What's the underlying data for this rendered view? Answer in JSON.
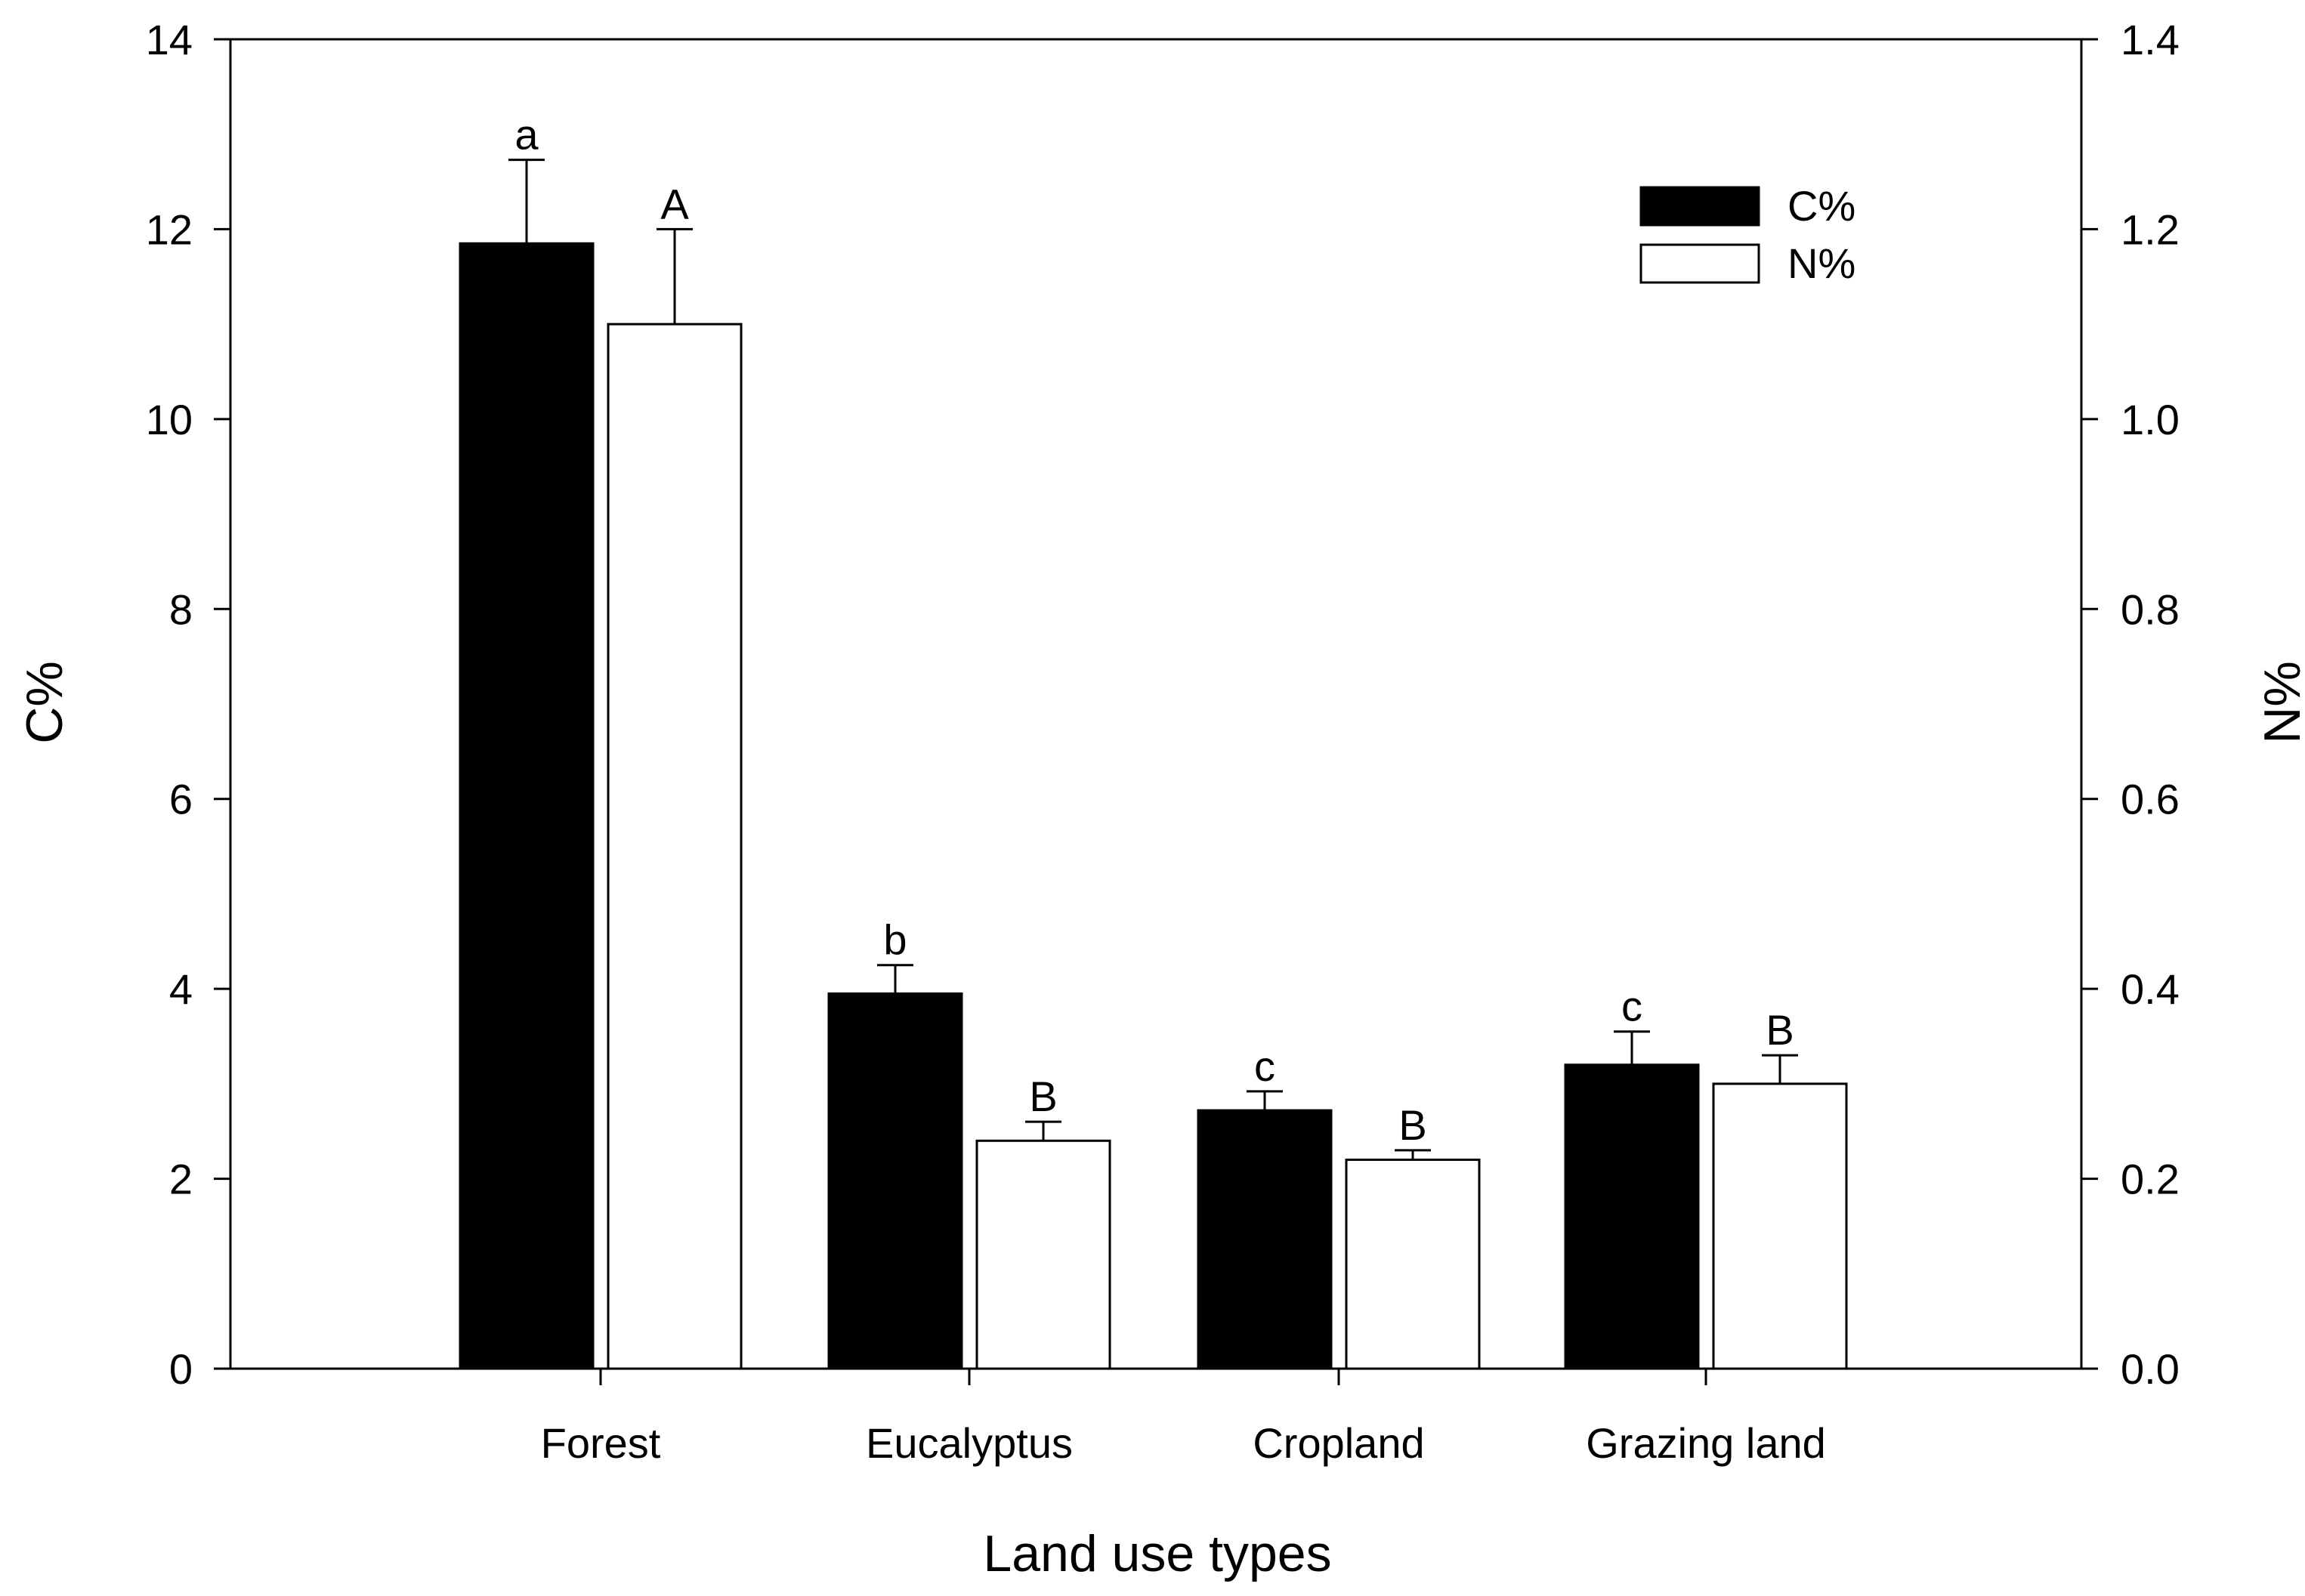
{
  "chart_data": {
    "type": "bar",
    "categories": [
      "Forest",
      "Eucalyptus",
      "Cropland",
      "Grazing land"
    ],
    "xlabel": "Land use types",
    "ylabel": "C%",
    "y2label": "N%",
    "ylim": [
      0,
      14
    ],
    "y2lim": [
      0,
      1.4
    ],
    "yticks": [
      "0",
      "2",
      "4",
      "6",
      "8",
      "10",
      "12",
      "14"
    ],
    "y2ticks": [
      "0.0",
      "0.2",
      "0.4",
      "0.6",
      "0.8",
      "1.0",
      "1.2",
      "1.4"
    ],
    "grid": false,
    "legend": "top-right",
    "series": [
      {
        "name": "C%",
        "axis": "left",
        "color": "#000000",
        "values": [
          11.85,
          3.95,
          2.72,
          3.2
        ],
        "errors": [
          0.88,
          0.3,
          0.2,
          0.35
        ],
        "letters": [
          "a",
          "b",
          "c",
          "c"
        ]
      },
      {
        "name": "N%",
        "axis": "right",
        "color": "#ffffff",
        "values": [
          1.1,
          0.24,
          0.22,
          0.3
        ],
        "errors": [
          0.1,
          0.02,
          0.01,
          0.03
        ],
        "letters": [
          "A",
          "B",
          "B",
          "B"
        ]
      }
    ]
  }
}
